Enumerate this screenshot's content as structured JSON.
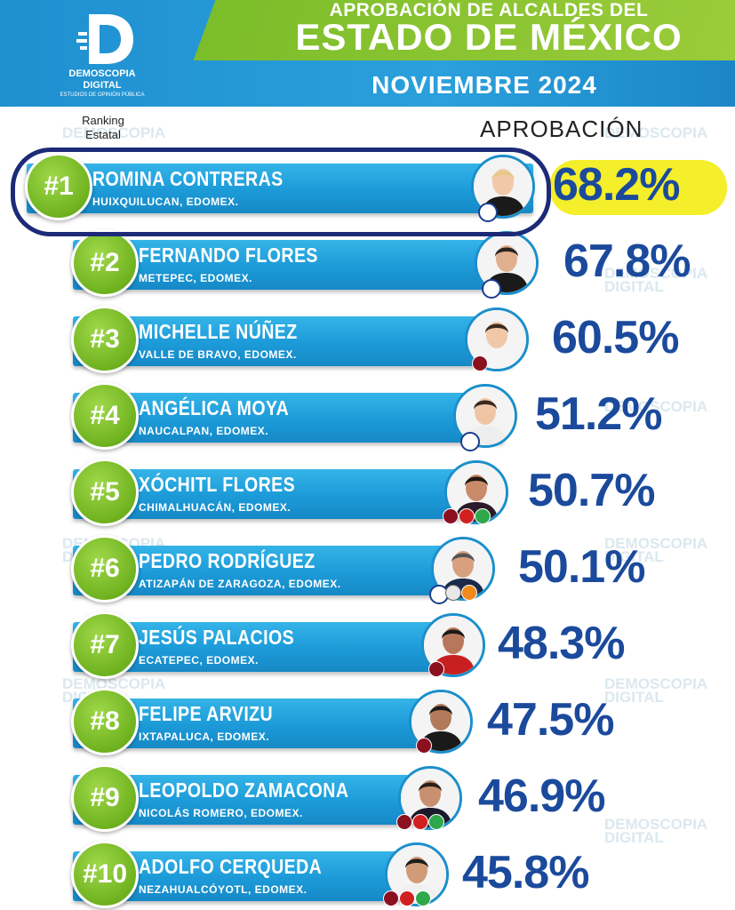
{
  "header": {
    "title_line1": "APROBACIÓN DE ALCALDES DEL",
    "title_line2": "ESTADO DE MÉXICO",
    "title_line3": "NOVIEMBRE 2024",
    "logo_line1": "DEMOSCOPIA",
    "logo_line2": "DIGITAL",
    "logo_line3": "ESTUDIOS DE OPINIÓN PÚBLICA"
  },
  "labels": {
    "ranking_line1": "Ranking",
    "ranking_line2": "Estatal",
    "approval": "APROBACIÓN"
  },
  "watermark": {
    "line1": "DEMOSCOPIA",
    "line2": "DIGITAL"
  },
  "colors": {
    "bar": "#1c9ad8",
    "rank_circle": "#6fb21f",
    "percent_text": "#1b4a9c",
    "highlight": "#f4ef2a",
    "outline": "#1d2a78"
  },
  "chart_data": {
    "type": "bar",
    "title": "APROBACIÓN DE ALCALDES DEL ESTADO DE MÉXICO",
    "subtitle": "NOVIEMBRE 2024",
    "ylabel": "APROBACIÓN",
    "unit": "%",
    "categories": [
      "ROMINA CONTRERAS",
      "FERNANDO FLORES",
      "MICHELLE NÚÑEZ",
      "ANGÉLICA MOYA",
      "XÓCHITL FLORES",
      "PEDRO RODRÍGUEZ",
      "JESÚS PALACIOS",
      "FELIPE ARVIZU",
      "LEOPOLDO ZAMACONA",
      "ADOLFO CERQUEDA"
    ],
    "values": [
      68.2,
      67.8,
      60.5,
      51.2,
      50.7,
      50.1,
      48.3,
      47.5,
      46.9,
      45.8
    ],
    "rows": [
      {
        "rank": "#1",
        "name": "ROMINA CONTRERAS",
        "location": "HUIXQUILUCAN, EDOMEX.",
        "value": 68.2,
        "label": "68.2%",
        "parties": [
          "PAN"
        ]
      },
      {
        "rank": "#2",
        "name": "FERNANDO FLORES",
        "location": "METEPEC, EDOMEX.",
        "value": 67.8,
        "label": "67.8%",
        "parties": [
          "PAN"
        ]
      },
      {
        "rank": "#3",
        "name": "MICHELLE NÚÑEZ",
        "location": "VALLE DE BRAVO, EDOMEX.",
        "value": 60.5,
        "label": "60.5%",
        "parties": [
          "morena"
        ]
      },
      {
        "rank": "#4",
        "name": "ANGÉLICA MOYA",
        "location": "NAUCALPAN, EDOMEX.",
        "value": 51.2,
        "label": "51.2%",
        "parties": [
          "PAN"
        ]
      },
      {
        "rank": "#5",
        "name": "XÓCHITL FLORES",
        "location": "CHIMALHUACÁN, EDOMEX.",
        "value": 50.7,
        "label": "50.7%",
        "parties": [
          "morena",
          "PT",
          "PVEM"
        ]
      },
      {
        "rank": "#6",
        "name": "PEDRO RODRÍGUEZ",
        "location": "ATIZAPÁN DE ZARAGOZA, EDOMEX.",
        "value": 50.1,
        "label": "50.1%",
        "parties": [
          "PAN",
          "PRI",
          "PRD"
        ]
      },
      {
        "rank": "#7",
        "name": "JESÚS PALACIOS",
        "location": "ECATEPEC, EDOMEX.",
        "value": 48.3,
        "label": "48.3%",
        "parties": [
          "morena"
        ]
      },
      {
        "rank": "#8",
        "name": "FELIPE ARVIZU",
        "location": "IXTAPALUCA, EDOMEX.",
        "value": 47.5,
        "label": "47.5%",
        "parties": [
          "morena"
        ]
      },
      {
        "rank": "#9",
        "name": "LEOPOLDO ZAMACONA",
        "location": "NICOLÁS ROMERO, EDOMEX.",
        "value": 46.9,
        "label": "46.9%",
        "parties": [
          "morena",
          "PT",
          "PVEM"
        ]
      },
      {
        "rank": "#10",
        "name": "ADOLFO CERQUEDA",
        "location": "NEZAHUALCÓYOTL, EDOMEX.",
        "value": 45.8,
        "label": "45.8%",
        "parties": [
          "morena",
          "PT",
          "PVEM"
        ]
      }
    ]
  }
}
